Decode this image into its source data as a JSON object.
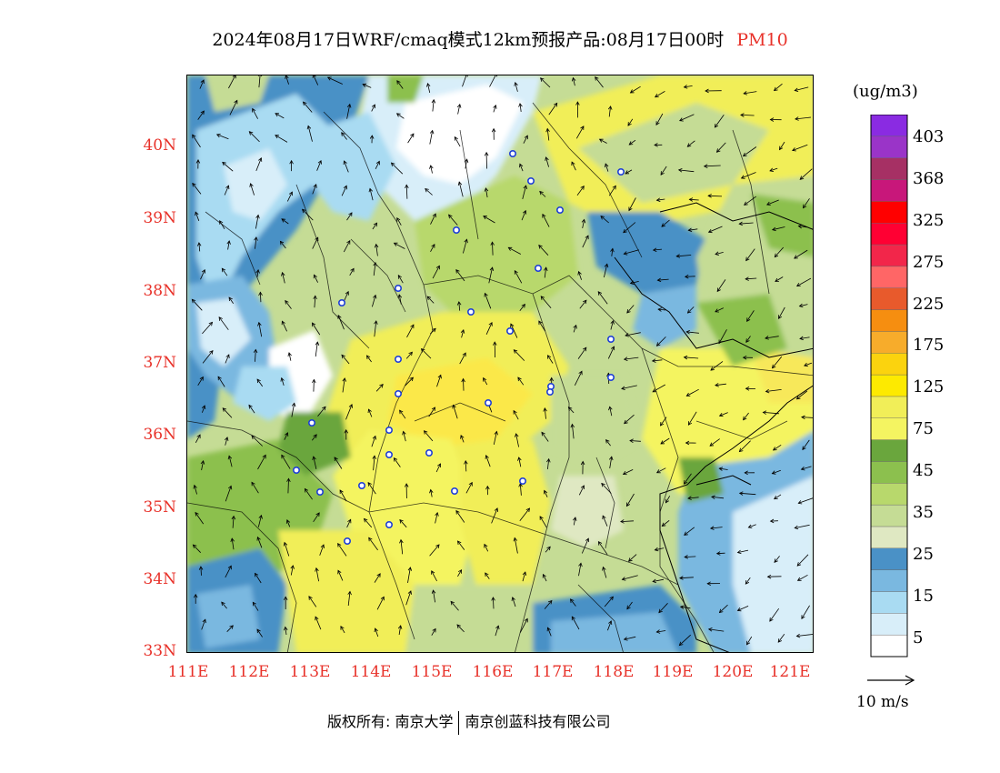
{
  "title": {
    "main": "2024年08月17日WRF/cmaq模式12km预报产品:08月17日00时",
    "species": "PM10",
    "species_color": "#e8322a"
  },
  "axes": {
    "lat_labels": [
      "40N",
      "39N",
      "38N",
      "37N",
      "36N",
      "35N",
      "34N",
      "33N"
    ],
    "lon_labels": [
      "111E",
      "112E",
      "113E",
      "114E",
      "115E",
      "116E",
      "117E",
      "118E",
      "119E",
      "120E",
      "121E"
    ],
    "label_color": "#e8322a"
  },
  "colorbar": {
    "unit": "(ug/m3)",
    "colors": [
      "#ffffff",
      "#d8eef9",
      "#a9dbf2",
      "#7ab8e0",
      "#4a91c6",
      "#dfe8c2",
      "#c5dc95",
      "#b8d86c",
      "#8cc04e",
      "#6aa63d",
      "#f4f461",
      "#f1ee58",
      "#fdea00",
      "#fbd30e",
      "#f7ac2b",
      "#f68e10",
      "#e85a2c",
      "#ff6666",
      "#f2264a",
      "#ff0033",
      "#ff0000",
      "#c8177a",
      "#a63064",
      "#9a34c8",
      "#8a2be2"
    ],
    "labels": [
      "5",
      "15",
      "25",
      "35",
      "45",
      "75",
      "125",
      "175",
      "225",
      "275",
      "325",
      "368",
      "403"
    ]
  },
  "wind": {
    "label": "10 m/s"
  },
  "footer": {
    "left": "版权所有: 南京大学",
    "right": "南京创蓝科技有限公司"
  },
  "icons": {
    "city-marker": "city-marker-icon",
    "wind-arrow": "wind-arrow-icon"
  }
}
